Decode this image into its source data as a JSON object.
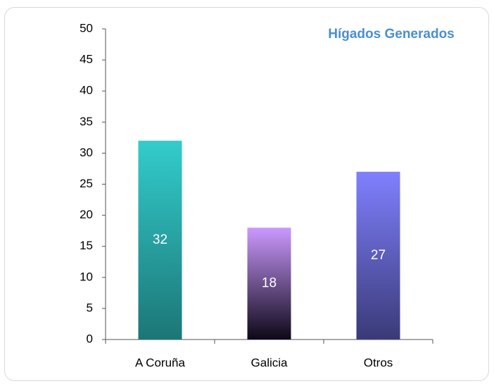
{
  "chart_data": {
    "type": "bar",
    "title": "Hígados Generados",
    "categories": [
      "A Coruña",
      "Galicia",
      "Otros"
    ],
    "values": [
      32,
      18,
      27
    ],
    "gradients": [
      [
        "#33cccc",
        "#1c7676"
      ],
      [
        "#cc99ff",
        "#0d0818"
      ],
      [
        "#8080ff",
        "#3a3a78"
      ]
    ],
    "label_color": "#ffffff",
    "ylim": [
      0,
      50
    ],
    "yticks": [
      0,
      5,
      10,
      15,
      20,
      25,
      30,
      35,
      40,
      45,
      50
    ],
    "grid": false
  }
}
